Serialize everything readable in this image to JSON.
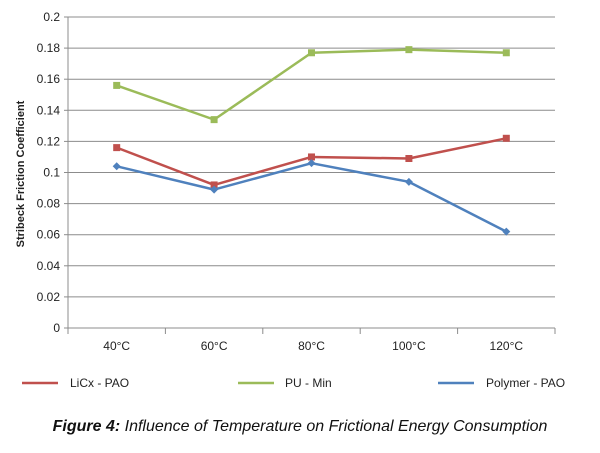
{
  "caption": {
    "label": "Figure 4:",
    "text": "Influence of Temperature on Frictional Energy Consumption"
  },
  "chart_data": {
    "type": "line",
    "categories": [
      "40°C",
      "60°C",
      "80°C",
      "100°C",
      "120°C"
    ],
    "ylabel": "Stribeck Friction Coefficient",
    "xlabel": "",
    "ylim": [
      0,
      0.2
    ],
    "yticks": [
      "0",
      "0.02",
      "0.04",
      "0.06",
      "0.08",
      "0.1",
      "0.12",
      "0.14",
      "0.16",
      "0.18",
      "0.2"
    ],
    "grid": true,
    "legend_position": "bottom",
    "series": [
      {
        "name": "LiCx - PAO",
        "color": "#c0504d",
        "marker": "square",
        "values": [
          0.116,
          0.092,
          0.11,
          0.109,
          0.122
        ]
      },
      {
        "name": "PU - Min",
        "color": "#9bbb59",
        "marker": "square",
        "values": [
          0.156,
          0.134,
          0.177,
          0.179,
          0.177
        ]
      },
      {
        "name": "Polymer - PAO",
        "color": "#4f81bd",
        "marker": "diamond",
        "values": [
          0.104,
          0.089,
          0.106,
          0.094,
          0.062
        ]
      }
    ]
  }
}
